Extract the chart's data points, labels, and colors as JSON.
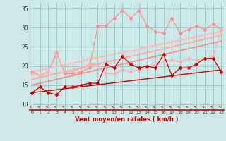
{
  "x": [
    0,
    1,
    2,
    3,
    4,
    5,
    6,
    7,
    8,
    9,
    10,
    11,
    12,
    13,
    14,
    15,
    16,
    17,
    18,
    19,
    20,
    21,
    22,
    23
  ],
  "line1_y": [
    18.5,
    17.5,
    18.5,
    23.5,
    18.0,
    18.0,
    18.5,
    19.5,
    30.5,
    30.5,
    32.5,
    34.5,
    32.5,
    34.5,
    30.5,
    29.0,
    28.5,
    32.5,
    28.5,
    29.5,
    30.5,
    29.5,
    31.0,
    29.5
  ],
  "line2_y": [
    18.0,
    17.5,
    18.5,
    23.0,
    18.5,
    18.5,
    19.5,
    20.5,
    20.5,
    18.0,
    18.0,
    19.0,
    18.5,
    19.0,
    19.5,
    20.5,
    21.0,
    21.5,
    21.0,
    22.0,
    21.5,
    22.0,
    22.5,
    29.5
  ],
  "line3_y": [
    13.0,
    14.5,
    13.0,
    12.5,
    14.5,
    14.5,
    15.0,
    15.5,
    15.5,
    20.5,
    19.5,
    22.5,
    20.5,
    19.5,
    20.0,
    19.5,
    23.0,
    17.5,
    19.5,
    19.5,
    20.5,
    22.0,
    22.0,
    18.5
  ],
  "trend1_x": [
    0,
    23
  ],
  "trend1_y": [
    18.5,
    29.0
  ],
  "trend2_x": [
    0,
    23
  ],
  "trend2_y": [
    16.5,
    28.0
  ],
  "trend3_x": [
    0,
    23
  ],
  "trend3_y": [
    15.0,
    26.5
  ],
  "trend4_x": [
    0,
    23
  ],
  "trend4_y": [
    13.0,
    19.0
  ],
  "bg_color": "#cce8e8",
  "grid_color": "#99cccc",
  "line1_color": "#ff8888",
  "line2_color": "#ffaaaa",
  "line3_color": "#cc0000",
  "trend1_color": "#ffbbbb",
  "trend2_color": "#ffaaaa",
  "trend3_color": "#ff8888",
  "trend4_color": "#cc0000",
  "xlabel": "Vent moyen/en rafales ( km/h )",
  "ylabel_ticks": [
    10,
    15,
    20,
    25,
    30,
    35
  ],
  "ylim": [
    8.5,
    36.5
  ],
  "xlim": [
    -0.3,
    23.3
  ],
  "arrow_color": "#cc2222",
  "label_color": "#cc0000"
}
